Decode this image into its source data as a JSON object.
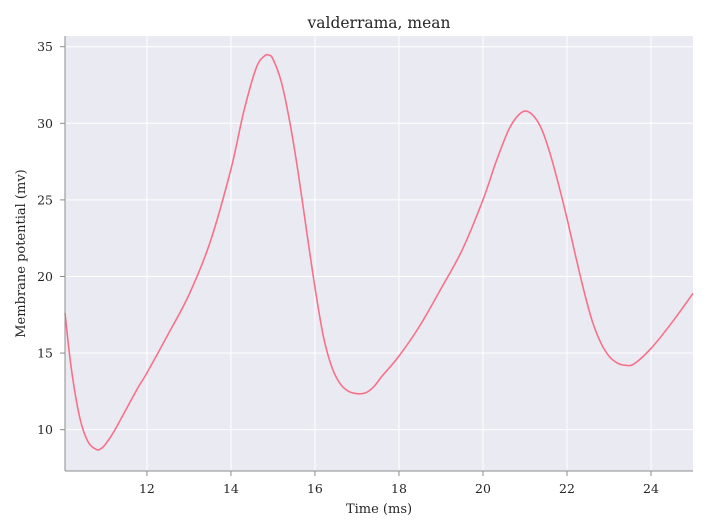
{
  "chart_data": {
    "type": "line",
    "title": "valderrama, mean",
    "xlabel": "Time (ms)",
    "ylabel": "Membrane potential (mv)",
    "xlim": [
      10.05,
      25.0
    ],
    "ylim": [
      7.3,
      35.7
    ],
    "xticks": [
      12,
      14,
      16,
      18,
      20,
      22,
      24
    ],
    "yticks": [
      10,
      15,
      20,
      25,
      30,
      35
    ],
    "grid": true,
    "series": [
      {
        "color": "#f77189",
        "x": [
          10.05,
          10.2,
          10.4,
          10.6,
          10.8,
          10.9,
          11.0,
          11.2,
          11.5,
          11.8,
          12.0,
          12.5,
          13.0,
          13.5,
          14.0,
          14.3,
          14.6,
          14.8,
          14.9,
          15.0,
          15.2,
          15.4,
          15.6,
          15.8,
          16.0,
          16.2,
          16.4,
          16.6,
          16.8,
          17.0,
          17.2,
          17.4,
          17.6,
          18.0,
          18.5,
          19.0,
          19.5,
          20.0,
          20.3,
          20.6,
          20.8,
          21.0,
          21.2,
          21.4,
          21.6,
          21.8,
          22.0,
          22.2,
          22.4,
          22.6,
          22.8,
          23.0,
          23.2,
          23.4,
          23.6,
          24.0,
          24.5,
          25.0
        ],
        "y": [
          17.6,
          14.0,
          10.8,
          9.2,
          8.7,
          8.75,
          9.0,
          9.8,
          11.3,
          12.8,
          13.7,
          16.2,
          18.8,
          22.2,
          27.0,
          30.7,
          33.6,
          34.4,
          34.45,
          34.2,
          32.7,
          30.1,
          26.8,
          23.0,
          19.3,
          16.1,
          14.1,
          13.0,
          12.5,
          12.35,
          12.4,
          12.8,
          13.5,
          14.8,
          16.8,
          19.2,
          21.7,
          25.0,
          27.4,
          29.5,
          30.4,
          30.8,
          30.5,
          29.6,
          28.0,
          26.0,
          23.8,
          21.4,
          19.1,
          17.1,
          15.7,
          14.8,
          14.35,
          14.2,
          14.3,
          15.3,
          17.0,
          18.9
        ]
      }
    ]
  }
}
